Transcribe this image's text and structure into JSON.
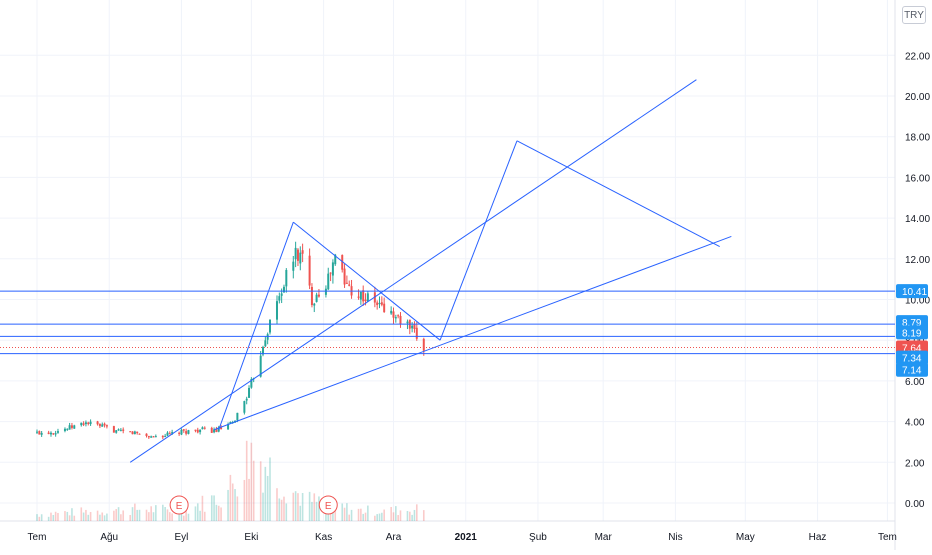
{
  "currency_button": "TRY",
  "colors": {
    "up": "#26a69a",
    "down": "#ef5350",
    "line": "#2962ff",
    "grid": "#f0f3fa",
    "axis_text": "#131722",
    "last_price": "#ef5350",
    "level_badge": "#2196f3"
  },
  "chart_data": {
    "type": "candlestick",
    "title": "",
    "xlabel": "",
    "ylabel": "",
    "ylim": [
      -0.4,
      23.5
    ],
    "grid": true,
    "x_ticks": [
      "Tem",
      "Ağu",
      "Eyl",
      "Eki",
      "Kas",
      "Ara",
      "2021",
      "Şub",
      "Mar",
      "Nis",
      "May",
      "Haz",
      "Tem"
    ],
    "y_ticks": [
      "0.00",
      "2.00",
      "4.00",
      "6.00",
      "8.00",
      "10.00",
      "12.00",
      "14.00",
      "16.00",
      "18.00",
      "20.00",
      "22.00"
    ],
    "last_price": "7.64",
    "price_labels": [
      "10.41",
      "8.79",
      "8.19",
      "7.64",
      "7.34",
      "7.14"
    ],
    "horizontal_levels": [
      10.41,
      8.79,
      8.19,
      7.34
    ],
    "earnings_markers": [
      {
        "label": "E",
        "date": "2020-08-31"
      },
      {
        "label": "E",
        "date": "2020-11-03"
      }
    ],
    "price_series": [
      [
        "2020-07-01",
        3.45
      ],
      [
        "2020-07-08",
        3.5
      ],
      [
        "2020-07-15",
        3.7
      ],
      [
        "2020-07-22",
        3.95
      ],
      [
        "2020-07-29",
        3.75
      ],
      [
        "2020-08-05",
        3.5
      ],
      [
        "2020-08-12",
        3.45
      ],
      [
        "2020-08-19",
        3.25
      ],
      [
        "2020-08-26",
        3.35
      ],
      [
        "2020-09-02",
        3.5
      ],
      [
        "2020-09-09",
        3.6
      ],
      [
        "2020-09-16",
        3.55
      ],
      [
        "2020-09-23",
        3.9
      ],
      [
        "2020-09-30",
        5.5
      ],
      [
        "2020-10-07",
        8.2
      ],
      [
        "2020-10-14",
        10.5
      ],
      [
        "2020-10-20",
        12.3
      ],
      [
        "2020-10-23",
        12.0
      ],
      [
        "2020-10-27",
        10.0
      ],
      [
        "2020-11-03",
        11.0
      ],
      [
        "2020-11-07",
        12.4
      ],
      [
        "2020-11-10",
        10.8
      ],
      [
        "2020-11-17",
        10.2
      ],
      [
        "2020-11-24",
        9.8
      ],
      [
        "2020-12-01",
        9.2
      ],
      [
        "2020-12-08",
        8.6
      ],
      [
        "2020-12-14",
        7.64
      ]
    ],
    "volume_series": [
      [
        "2020-07-01",
        0.4
      ],
      [
        "2020-07-15",
        0.5
      ],
      [
        "2020-08-01",
        0.6
      ],
      [
        "2020-08-15",
        0.7
      ],
      [
        "2020-09-01",
        0.6
      ],
      [
        "2020-09-20",
        1.5
      ],
      [
        "2020-10-01",
        4.0
      ],
      [
        "2020-10-07",
        3.3
      ],
      [
        "2020-10-14",
        2.2
      ],
      [
        "2020-10-25",
        1.2
      ],
      [
        "2020-11-03",
        1.0
      ],
      [
        "2020-11-15",
        0.6
      ],
      [
        "2020-12-01",
        0.6
      ],
      [
        "2020-12-14",
        0.7
      ]
    ],
    "drawn_lines": [
      {
        "from": [
          "2020-08-10",
          2.0
        ],
        "to": [
          "2021-04-10",
          20.8
        ]
      },
      {
        "from": [
          "2020-09-15",
          3.6
        ],
        "to": [
          "2021-04-25",
          13.1
        ]
      },
      {
        "from": [
          "2020-09-17",
          3.6
        ],
        "to": [
          "2020-10-19",
          13.8
        ]
      },
      {
        "from": [
          "2020-10-19",
          13.8
        ],
        "to": [
          "2020-12-21",
          8.0
        ]
      },
      {
        "from": [
          "2020-12-21",
          8.0
        ],
        "to": [
          "2021-01-23",
          17.8
        ]
      },
      {
        "from": [
          "2021-01-23",
          17.8
        ],
        "to": [
          "2021-04-20",
          12.6
        ]
      }
    ]
  }
}
